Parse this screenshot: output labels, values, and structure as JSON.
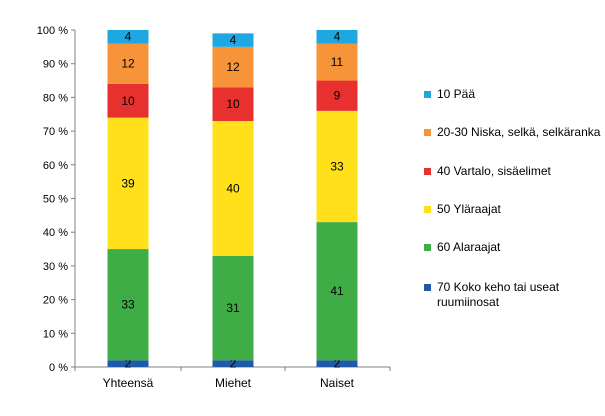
{
  "chart_data": {
    "type": "bar",
    "stacked": true,
    "percent": true,
    "categories": [
      "Yhteensä",
      "Miehet",
      "Naiset"
    ],
    "y_ticks": [
      "0 %",
      "10 %",
      "20 %",
      "30 %",
      "40 %",
      "50 %",
      "60 %",
      "70 %",
      "80 %",
      "90 %",
      "100 %"
    ],
    "ylim": [
      0,
      100
    ],
    "grid": false,
    "legend_position": "right",
    "series": [
      {
        "name": "70  Koko keho tai useat ruumiinosat",
        "color": "#1f5aa6",
        "values": [
          2,
          2,
          2
        ]
      },
      {
        "name": "60  Alaraajat",
        "color": "#3fad46",
        "values": [
          33,
          31,
          41
        ]
      },
      {
        "name": "50  Yläraajat",
        "color": "#ffe01a",
        "values": [
          39,
          40,
          33
        ]
      },
      {
        "name": "40  Vartalo, sisäelimet",
        "color": "#e8312f",
        "values": [
          10,
          10,
          9
        ]
      },
      {
        "name": "20-30  Niska, selkä, selkäranka",
        "color": "#f7943a",
        "values": [
          12,
          12,
          11
        ]
      },
      {
        "name": "10  Pää",
        "color": "#1ea7e0",
        "values": [
          4,
          4,
          4
        ]
      }
    ]
  },
  "legend_order": [
    5,
    4,
    3,
    2,
    1,
    0
  ]
}
